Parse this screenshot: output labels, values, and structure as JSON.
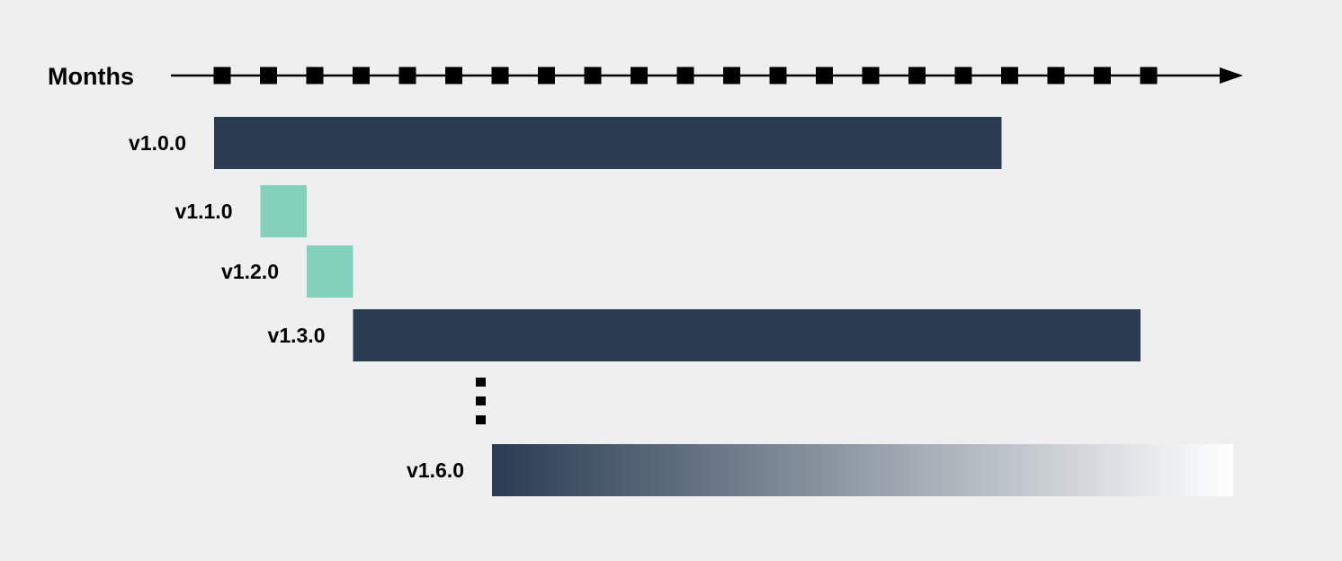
{
  "axis": {
    "label": "Months",
    "tick_count": 21
  },
  "releases": [
    {
      "name": "v1.0.0",
      "start_month": 0,
      "duration_months": 17,
      "kind": "long-term",
      "color": "#293c52"
    },
    {
      "name": "v1.1.0",
      "start_month": 1,
      "duration_months": 1,
      "kind": "short-term",
      "color": "#83d0bb"
    },
    {
      "name": "v1.2.0",
      "start_month": 2,
      "duration_months": 1,
      "kind": "short-term",
      "color": "#83d0bb"
    },
    {
      "name": "v1.3.0",
      "start_month": 3,
      "duration_months": 17,
      "kind": "long-term",
      "color": "#293c52"
    },
    {
      "name": "v1.6.0",
      "start_month": 6,
      "duration_months": 16,
      "kind": "ongoing",
      "color": "#293c52",
      "fade_to": "#ffffff"
    }
  ],
  "colors": {
    "background": "#efefef",
    "axis": "#000000"
  }
}
